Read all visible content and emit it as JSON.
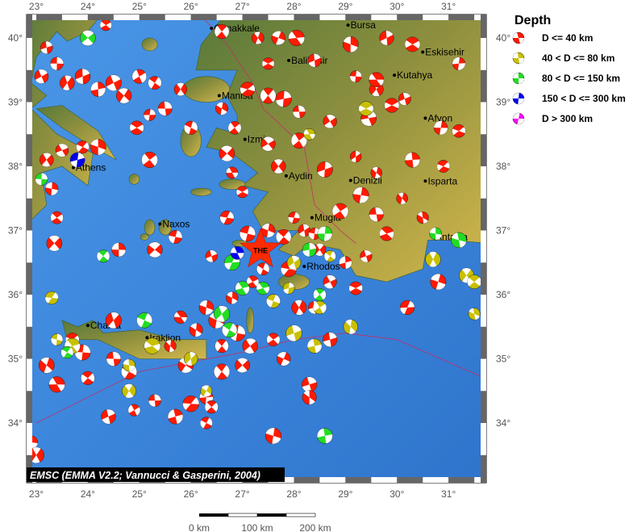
{
  "map": {
    "lon_range": [
      22.8,
      31.7
    ],
    "lat_range": [
      33.1,
      40.35
    ],
    "lon_ticks": [
      23,
      24,
      25,
      26,
      27,
      28,
      29,
      30,
      31
    ],
    "lat_ticks": [
      34,
      35,
      36,
      37,
      38,
      39,
      40
    ],
    "lon_tick_labels": [
      "23°",
      "24°",
      "25°",
      "26°",
      "27°",
      "28°",
      "29°",
      "30°",
      "31°"
    ],
    "lat_tick_labels": [
      "34°",
      "35°",
      "36°",
      "37°",
      "38°",
      "39°",
      "40°"
    ],
    "colors": {
      "sea": "#3f86dd",
      "land_low": "#4f7a2c",
      "land_high": "#d2b64a",
      "fault": "#c0306a"
    },
    "cities": [
      {
        "name": "Canakkale",
        "lon": 26.4,
        "lat": 40.15
      },
      {
        "name": "Bursa",
        "lon": 29.05,
        "lat": 40.2
      },
      {
        "name": "Balikesir",
        "lon": 27.9,
        "lat": 39.65
      },
      {
        "name": "Eskisehir",
        "lon": 30.5,
        "lat": 39.78
      },
      {
        "name": "Kutahya",
        "lon": 29.95,
        "lat": 39.42
      },
      {
        "name": "Manisa",
        "lon": 26.55,
        "lat": 39.1
      },
      {
        "name": "Izmir",
        "lon": 27.05,
        "lat": 38.42
      },
      {
        "name": "Afyon",
        "lon": 30.55,
        "lat": 38.75
      },
      {
        "name": "Athens",
        "lon": 23.72,
        "lat": 37.98
      },
      {
        "name": "Aydin",
        "lon": 27.85,
        "lat": 37.85
      },
      {
        "name": "Denizli",
        "lon": 29.1,
        "lat": 37.78
      },
      {
        "name": "Isparta",
        "lon": 30.55,
        "lat": 37.77
      },
      {
        "name": "Naxos",
        "lon": 25.4,
        "lat": 37.1
      },
      {
        "name": "Mugla",
        "lon": 28.35,
        "lat": 37.2
      },
      {
        "name": "Antalya",
        "lon": 30.7,
        "lat": 36.9
      },
      {
        "name": "Rhodos",
        "lon": 28.2,
        "lat": 36.44
      },
      {
        "name": "Chania",
        "lon": 24.0,
        "lat": 35.52
      },
      {
        "name": "Iraklion",
        "lon": 25.15,
        "lat": 35.33
      }
    ],
    "mainshock": {
      "label": "THE",
      "lon": 27.35,
      "lat": 36.7,
      "color": "#ff2a00"
    },
    "caption": "EMSC (EMMA V2.2; Vannucci & Gasperini, 2004)",
    "events": {
      "shallow": [
        [
          24.35,
          40.2
        ],
        [
          23.2,
          39.85
        ],
        [
          23.4,
          39.6
        ],
        [
          23.1,
          39.4
        ],
        [
          23.9,
          39.4
        ],
        [
          23.6,
          39.3
        ],
        [
          24.2,
          39.2
        ],
        [
          24.7,
          39.1
        ],
        [
          24.5,
          39.3
        ],
        [
          25.0,
          39.4
        ],
        [
          25.3,
          39.3
        ],
        [
          25.8,
          39.2
        ],
        [
          26.0,
          38.6
        ],
        [
          25.5,
          38.9
        ],
        [
          25.2,
          38.8
        ],
        [
          24.95,
          38.6
        ],
        [
          24.2,
          38.3
        ],
        [
          23.5,
          38.25
        ],
        [
          23.2,
          38.1
        ],
        [
          23.9,
          38.3
        ],
        [
          23.3,
          37.65
        ],
        [
          23.4,
          37.2
        ],
        [
          23.35,
          36.8
        ],
        [
          24.6,
          36.7
        ],
        [
          25.2,
          38.1
        ],
        [
          26.6,
          38.9
        ],
        [
          26.85,
          38.6
        ],
        [
          26.7,
          38.2
        ],
        [
          27.0,
          37.6
        ],
        [
          26.8,
          37.9
        ],
        [
          27.7,
          38.0
        ],
        [
          27.5,
          38.35
        ],
        [
          28.1,
          38.4
        ],
        [
          28.6,
          37.95
        ],
        [
          29.2,
          38.15
        ],
        [
          29.6,
          37.9
        ],
        [
          30.3,
          38.1
        ],
        [
          30.9,
          38.0
        ],
        [
          31.2,
          38.55
        ],
        [
          30.85,
          38.6
        ],
        [
          29.9,
          38.95
        ],
        [
          29.45,
          38.75
        ],
        [
          29.6,
          39.2
        ],
        [
          30.15,
          39.05
        ],
        [
          29.2,
          39.4
        ],
        [
          29.6,
          39.35
        ],
        [
          27.5,
          39.6
        ],
        [
          27.1,
          39.2
        ],
        [
          27.5,
          39.1
        ],
        [
          27.8,
          39.05
        ],
        [
          28.1,
          38.85
        ],
        [
          28.4,
          39.65
        ],
        [
          29.1,
          39.9
        ],
        [
          29.8,
          40.0
        ],
        [
          30.3,
          39.9
        ],
        [
          31.2,
          39.6
        ],
        [
          26.6,
          40.1
        ],
        [
          27.3,
          40.0
        ],
        [
          27.7,
          40.0
        ],
        [
          28.05,
          40.0
        ],
        [
          28.7,
          38.7
        ],
        [
          27.5,
          37.0
        ],
        [
          27.8,
          36.9
        ],
        [
          28.0,
          37.2
        ],
        [
          28.2,
          37.0
        ],
        [
          28.5,
          36.7
        ],
        [
          28.4,
          36.95
        ],
        [
          28.9,
          37.3
        ],
        [
          29.3,
          37.55
        ],
        [
          29.6,
          37.25
        ],
        [
          30.1,
          37.5
        ],
        [
          30.5,
          37.2
        ],
        [
          29.8,
          36.95
        ],
        [
          29.4,
          36.6
        ],
        [
          29.0,
          36.5
        ],
        [
          28.7,
          36.2
        ],
        [
          29.2,
          36.1
        ],
        [
          27.4,
          36.4
        ],
        [
          27.2,
          36.2
        ],
        [
          26.4,
          36.6
        ],
        [
          26.8,
          35.95
        ],
        [
          26.3,
          35.8
        ],
        [
          26.5,
          35.6
        ],
        [
          25.8,
          35.65
        ],
        [
          26.1,
          35.45
        ],
        [
          26.9,
          35.4
        ],
        [
          26.6,
          35.2
        ],
        [
          27.15,
          35.2
        ],
        [
          27.6,
          35.3
        ],
        [
          27.8,
          35.0
        ],
        [
          27.0,
          34.9
        ],
        [
          26.6,
          34.8
        ],
        [
          26.3,
          34.4
        ],
        [
          26.0,
          34.3
        ],
        [
          26.4,
          34.25
        ],
        [
          25.7,
          34.1
        ],
        [
          25.3,
          34.35
        ],
        [
          24.9,
          34.2
        ],
        [
          24.4,
          34.1
        ],
        [
          24.0,
          34.7
        ],
        [
          23.9,
          35.1
        ],
        [
          23.7,
          35.3
        ],
        [
          24.5,
          35.0
        ],
        [
          24.8,
          34.8
        ],
        [
          23.2,
          34.9
        ],
        [
          23.4,
          34.6
        ],
        [
          22.9,
          33.7
        ],
        [
          23.0,
          33.5
        ],
        [
          24.5,
          35.6
        ],
        [
          25.6,
          35.2
        ],
        [
          25.9,
          34.9
        ],
        [
          26.3,
          34.0
        ],
        [
          27.6,
          33.8
        ],
        [
          28.3,
          34.6
        ],
        [
          28.3,
          34.4
        ],
        [
          28.7,
          35.3
        ],
        [
          28.4,
          35.8
        ],
        [
          30.2,
          35.8
        ],
        [
          30.8,
          36.2
        ],
        [
          25.7,
          36.9
        ],
        [
          25.3,
          36.7
        ],
        [
          26.7,
          37.2
        ],
        [
          27.1,
          36.95
        ],
        [
          27.9,
          36.4
        ],
        [
          28.1,
          35.8
        ]
      ],
      "intermediate": [
        [
          25.25,
          35.2
        ],
        [
          23.4,
          35.3
        ],
        [
          23.7,
          35.2
        ],
        [
          24.8,
          34.9
        ],
        [
          24.8,
          34.5
        ],
        [
          26.0,
          35.0
        ],
        [
          26.3,
          34.5
        ],
        [
          27.6,
          35.9
        ],
        [
          28.0,
          36.5
        ],
        [
          28.4,
          35.2
        ],
        [
          28.0,
          35.4
        ],
        [
          30.7,
          36.55
        ],
        [
          31.35,
          36.3
        ],
        [
          31.5,
          36.2
        ],
        [
          31.5,
          35.7
        ],
        [
          23.3,
          35.95
        ],
        [
          29.1,
          35.5
        ],
        [
          28.7,
          36.6
        ],
        [
          27.9,
          36.1
        ],
        [
          28.5,
          35.8
        ],
        [
          28.3,
          38.5
        ],
        [
          29.4,
          38.9
        ]
      ],
      "deep": [
        [
          23.1,
          37.8
        ],
        [
          24.3,
          36.6
        ],
        [
          27.4,
          36.1
        ],
        [
          28.5,
          36.0
        ],
        [
          28.6,
          36.95
        ],
        [
          25.1,
          35.6
        ],
        [
          26.6,
          35.7
        ],
        [
          26.75,
          35.45
        ],
        [
          23.6,
          35.1
        ],
        [
          28.6,
          33.8
        ],
        [
          31.2,
          36.85
        ],
        [
          30.75,
          36.95
        ],
        [
          24.0,
          40.0
        ],
        [
          26.8,
          36.5
        ],
        [
          27.0,
          36.1
        ],
        [
          28.3,
          36.7
        ]
      ],
      "very_deep": [
        [
          26.9,
          36.65
        ],
        [
          23.8,
          38.1
        ]
      ],
      "ultra_deep": []
    }
  },
  "legend": {
    "title": "Depth",
    "items": [
      {
        "label": "D <= 40 km",
        "color": "#ff1a00"
      },
      {
        "label": "40 < D <= 80 km",
        "color": "#c8c000"
      },
      {
        "label": "80 < D <= 150 km",
        "color": "#22dd22"
      },
      {
        "label": "150 < D <= 300 km",
        "color": "#0000ee"
      },
      {
        "label": "D > 300 km",
        "color": "#ff00ff"
      }
    ]
  },
  "scale_bar": {
    "labels": [
      "0 km",
      "100 km",
      "200 km"
    ]
  }
}
